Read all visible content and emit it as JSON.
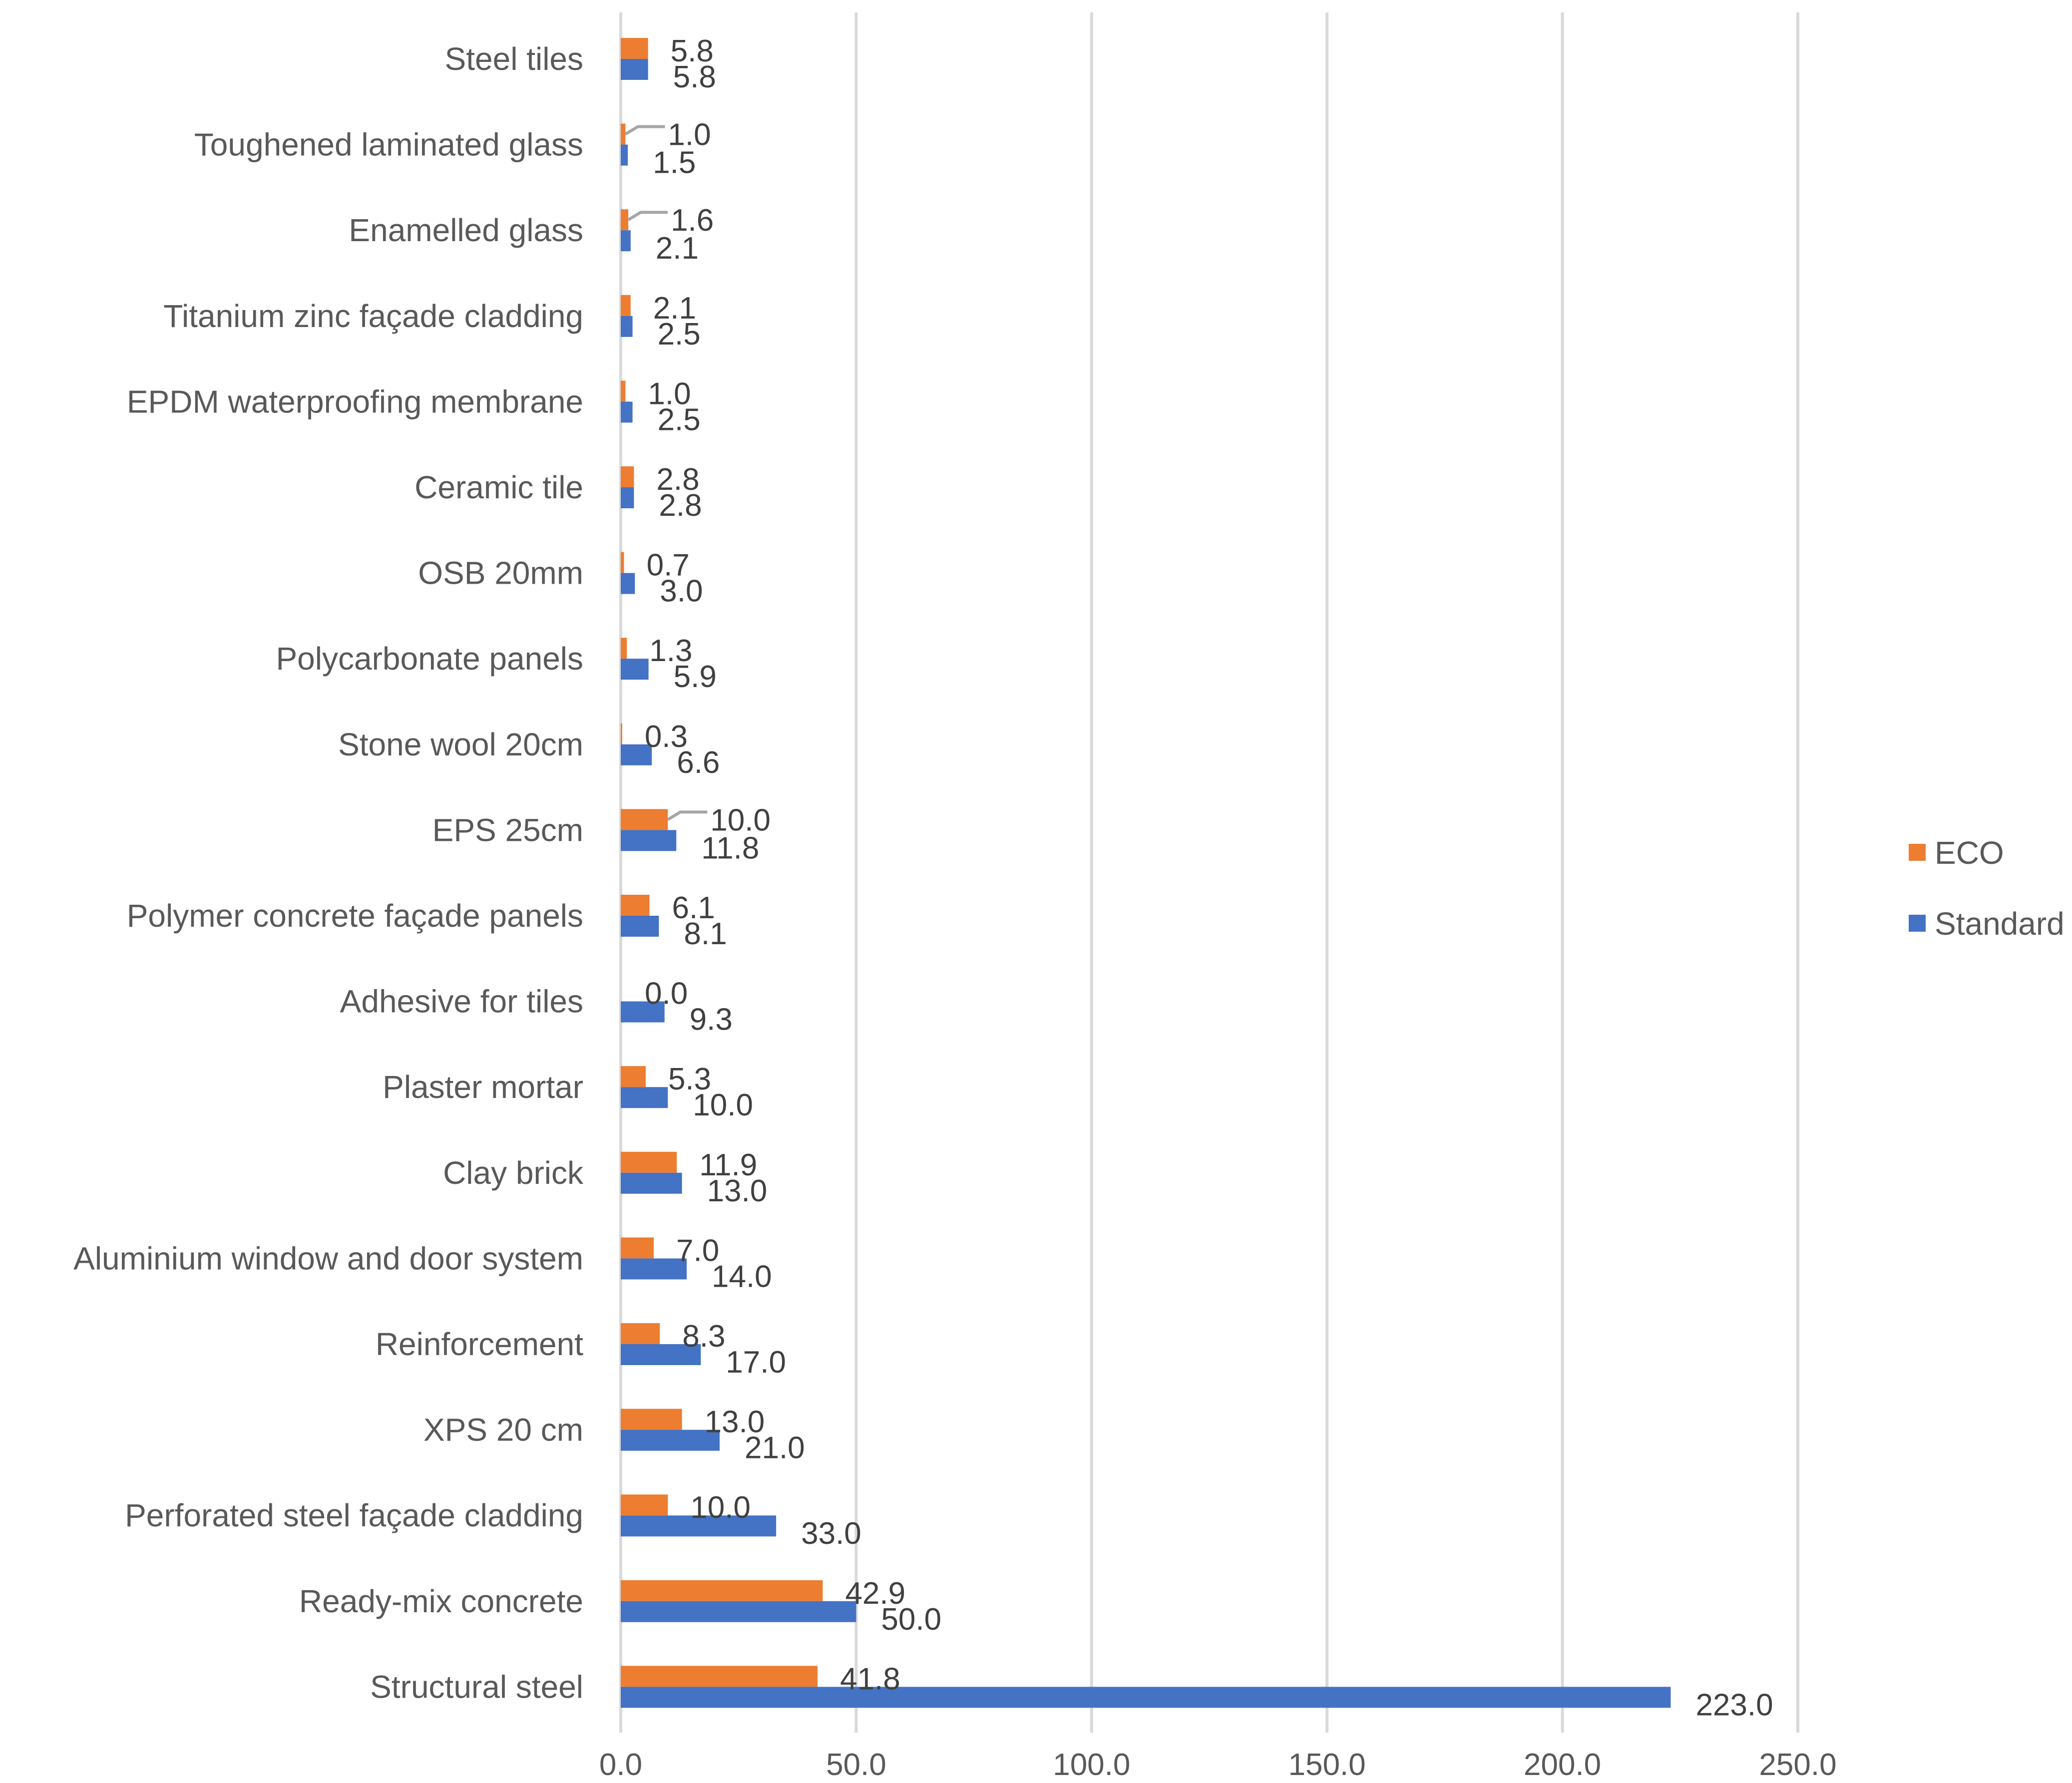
{
  "chart_data": {
    "type": "bar",
    "orientation": "horizontal",
    "title": "",
    "xlabel": "",
    "ylabel": "",
    "xlim": [
      0,
      250
    ],
    "xticks": [
      "0.0",
      "50.0",
      "100.0",
      "150.0",
      "200.0",
      "250.0"
    ],
    "grid": true,
    "legend_position": "right",
    "categories": [
      "Steel tiles",
      "Toughened laminated glass",
      "Enamelled glass",
      "Titanium zinc façade cladding",
      "EPDM waterproofing membrane",
      "Ceramic tile",
      "OSB 20mm",
      "Polycarbonate panels",
      "Stone wool 20cm",
      "EPS 25cm",
      "Polymer concrete façade panels",
      "Adhesive for tiles",
      "Plaster mortar",
      "Clay brick",
      "Aluminium window and door system",
      "Reinforcement",
      "XPS 20 cm",
      "Perforated steel façade cladding",
      "Ready-mix concrete",
      "Structural steel"
    ],
    "series": [
      {
        "name": "ECO",
        "color": "#ED7D31",
        "values": [
          5.8,
          1.0,
          1.6,
          2.1,
          1.0,
          2.8,
          0.7,
          1.3,
          0.3,
          10.0,
          6.1,
          0.0,
          5.3,
          11.9,
          7.0,
          8.3,
          13.0,
          10.0,
          42.9,
          41.8
        ],
        "labels": [
          "5.8",
          "1.0",
          "1.6",
          "2.1",
          "1.0",
          "2.8",
          "0.7",
          "1.3",
          "0.3",
          "10.0",
          "6.1",
          "0.0",
          "5.3",
          "11.9",
          "7.0",
          "8.3",
          "13.0",
          "10.0",
          "42.9",
          "41.8"
        ]
      },
      {
        "name": "Standard",
        "color": "#4472C4",
        "values": [
          5.8,
          1.5,
          2.1,
          2.5,
          2.5,
          2.8,
          3.0,
          5.9,
          6.6,
          11.8,
          8.1,
          9.3,
          10.0,
          13.0,
          14.0,
          17.0,
          21.0,
          33.0,
          50.0,
          223.0
        ],
        "labels": [
          "5.8",
          "1.5",
          "2.1",
          "2.5",
          "2.5",
          "2.8",
          "3.0",
          "5.9",
          "6.6",
          "11.8",
          "8.1",
          "9.3",
          "10.0",
          "13.0",
          "14.0",
          "17.0",
          "21.0",
          "33.0",
          "50.0",
          "223.0"
        ]
      }
    ]
  }
}
